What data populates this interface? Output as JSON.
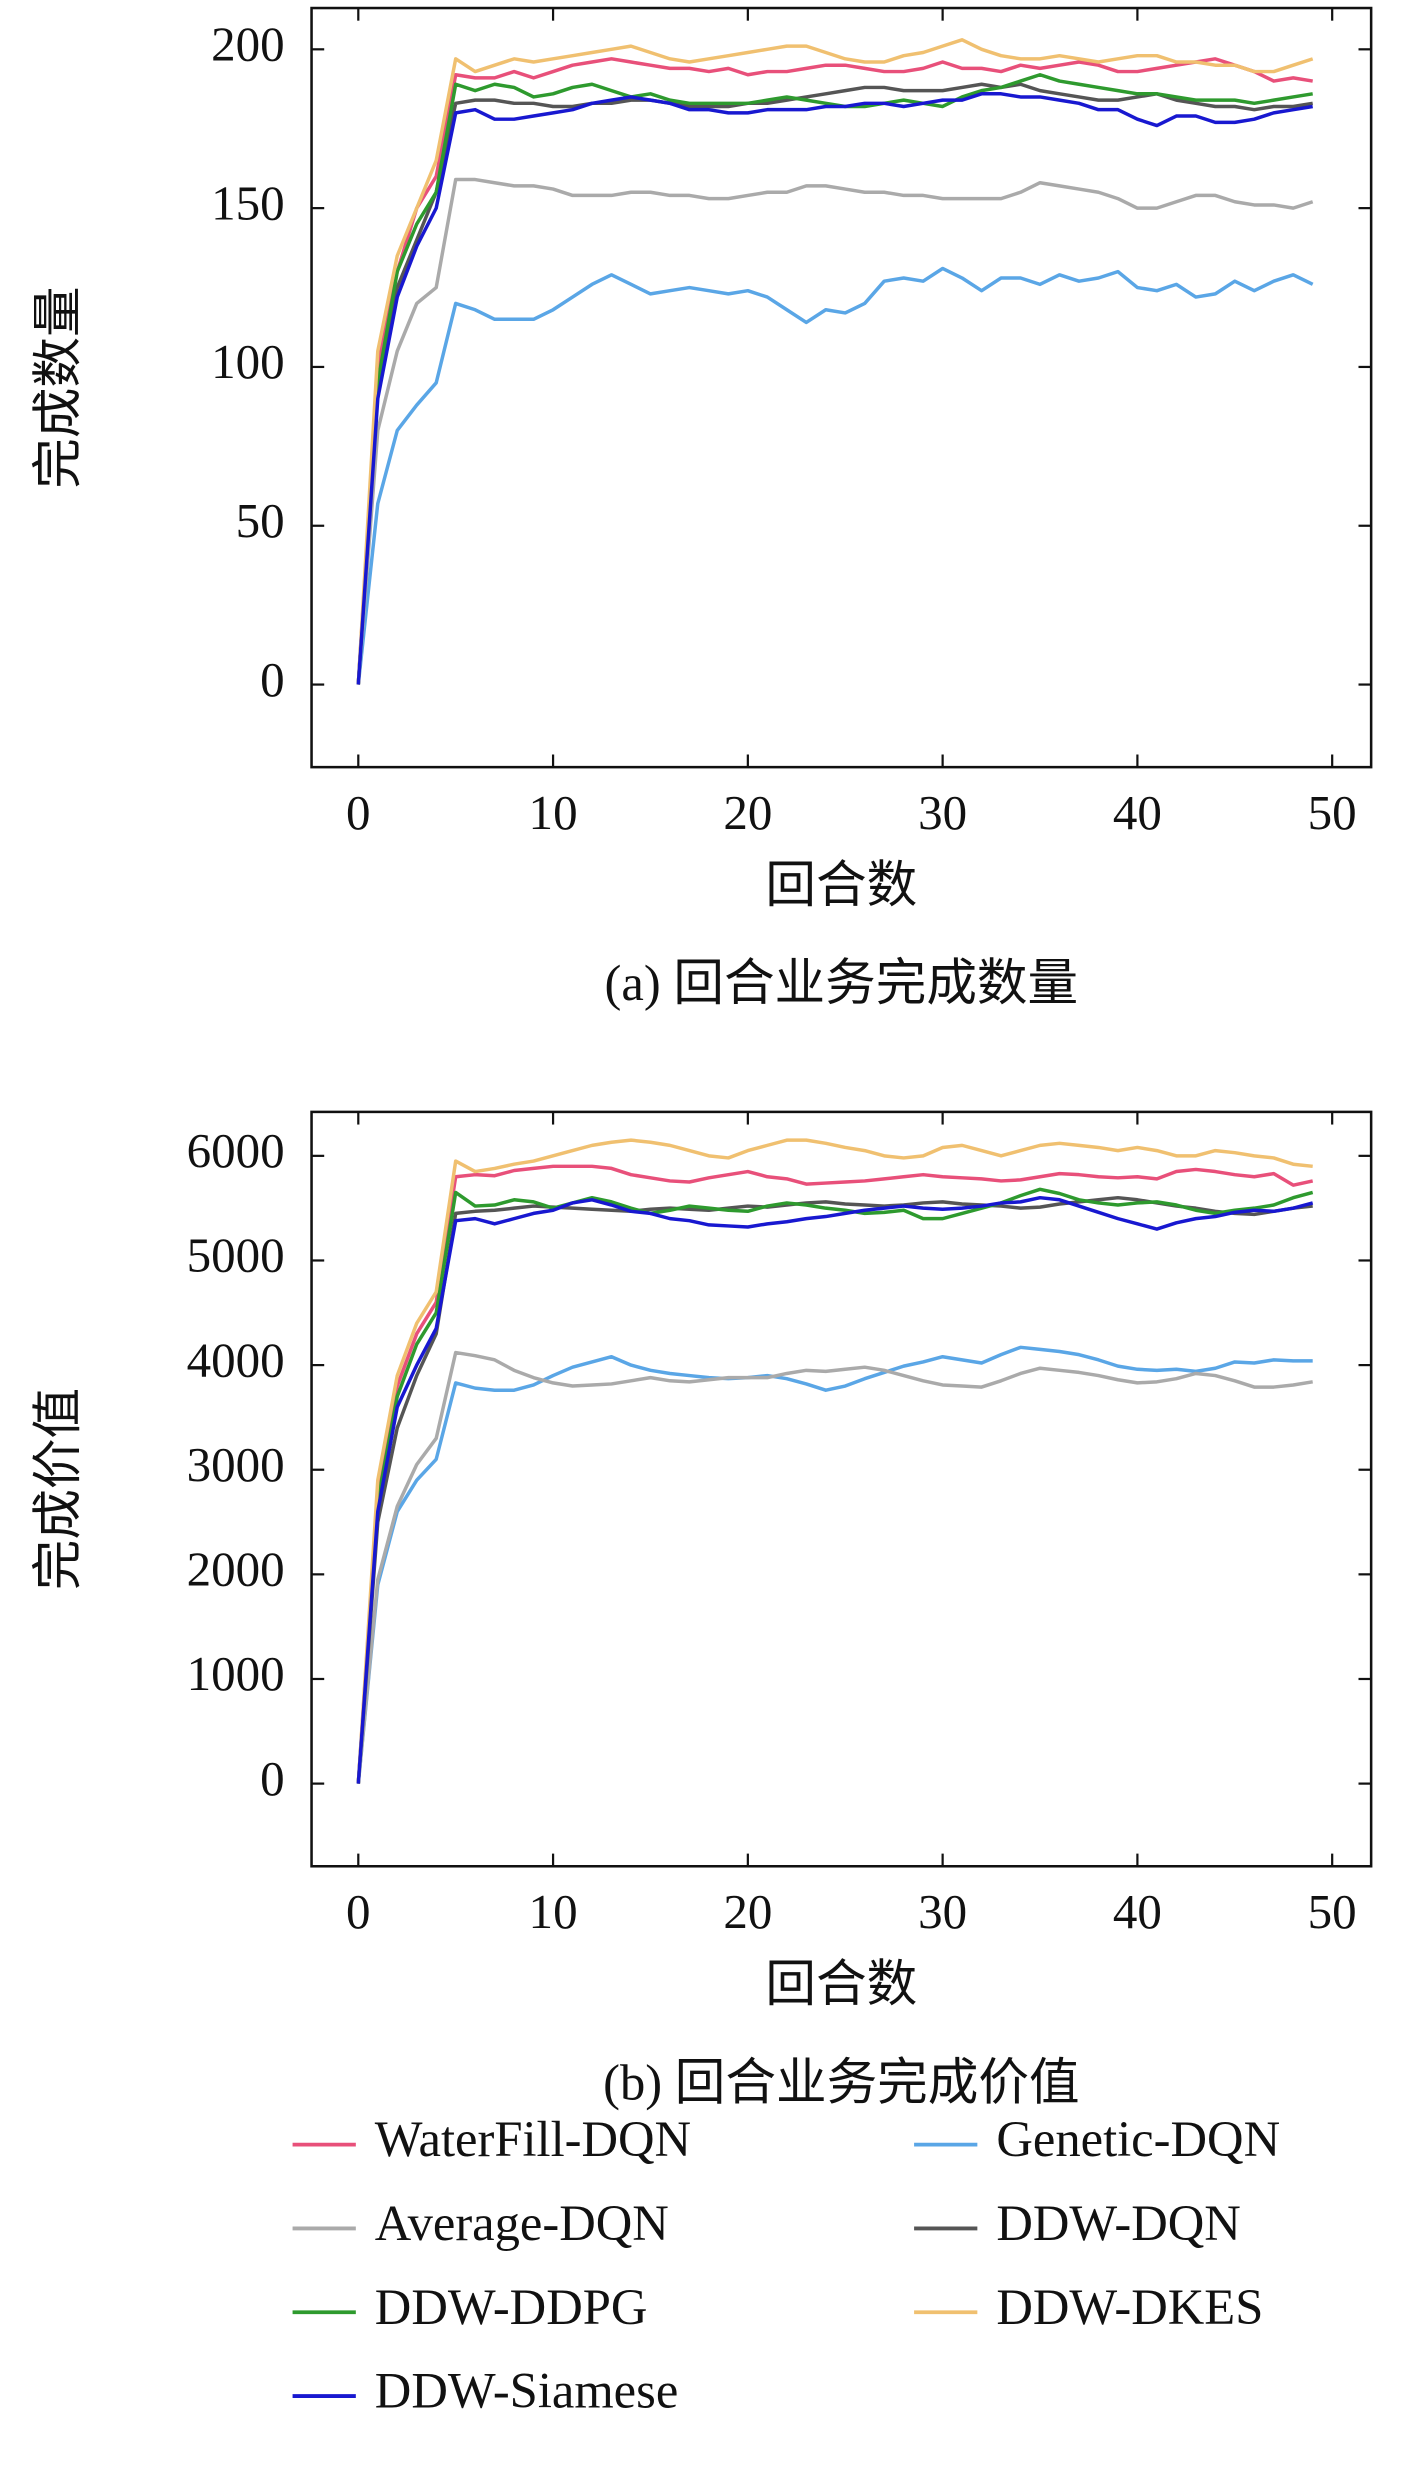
{
  "chart_data": [
    {
      "type": "line",
      "ylabel": "完成数量",
      "xlabel": "回合数",
      "caption": "(a) 回合业务完成数量",
      "x": [
        0,
        1,
        2,
        3,
        4,
        5,
        6,
        7,
        8,
        9,
        10,
        11,
        12,
        13,
        14,
        15,
        16,
        17,
        18,
        19,
        20,
        21,
        22,
        23,
        24,
        25,
        26,
        27,
        28,
        29,
        30,
        31,
        32,
        33,
        34,
        35,
        36,
        37,
        38,
        39,
        40,
        41,
        42,
        43,
        44,
        45,
        46,
        47,
        48,
        49
      ],
      "xlim": [
        -2.4,
        52
      ],
      "xticks": [
        0,
        10,
        20,
        30,
        40,
        50
      ],
      "ylim": [
        -26,
        213
      ],
      "yticks": [
        0,
        50,
        100,
        150,
        200
      ],
      "grid": false,
      "series": [
        {
          "name": "WaterFill-DQN",
          "color": "#e8507a",
          "values": [
            0,
            100,
            130,
            150,
            160,
            192,
            191,
            191,
            193,
            191,
            193,
            195,
            196,
            197,
            196,
            195,
            194,
            194,
            193,
            194,
            192,
            193,
            193,
            194,
            195,
            195,
            194,
            193,
            193,
            194,
            196,
            194,
            194,
            193,
            195,
            194,
            195,
            196,
            195,
            193,
            193,
            194,
            195,
            196,
            197,
            195,
            193,
            190,
            191,
            190
          ]
        },
        {
          "name": "Genetic-DQN",
          "color": "#5aa6e6",
          "values": [
            0,
            57,
            80,
            88,
            95,
            120,
            118,
            115,
            115,
            115,
            118,
            122,
            126,
            129,
            126,
            123,
            124,
            125,
            124,
            123,
            124,
            122,
            118,
            114,
            118,
            117,
            120,
            127,
            128,
            127,
            131,
            128,
            124,
            128,
            128,
            126,
            129,
            127,
            128,
            130,
            125,
            124,
            126,
            122,
            123,
            127,
            124,
            127,
            129,
            126
          ]
        },
        {
          "name": "Average-DQN",
          "color": "#aaaaaa",
          "values": [
            0,
            80,
            105,
            120,
            125,
            159,
            159,
            158,
            157,
            157,
            156,
            154,
            154,
            154,
            155,
            155,
            154,
            154,
            153,
            153,
            154,
            155,
            155,
            157,
            157,
            156,
            155,
            155,
            154,
            154,
            153,
            153,
            153,
            153,
            155,
            158,
            157,
            156,
            155,
            153,
            150,
            150,
            152,
            154,
            154,
            152,
            151,
            151,
            150,
            152
          ]
        },
        {
          "name": "DDW-DQN",
          "color": "#555555",
          "values": [
            0,
            95,
            125,
            140,
            155,
            183,
            184,
            184,
            183,
            183,
            182,
            182,
            183,
            183,
            184,
            184,
            183,
            182,
            182,
            182,
            183,
            183,
            184,
            185,
            186,
            187,
            188,
            188,
            187,
            187,
            187,
            188,
            189,
            188,
            189,
            187,
            186,
            185,
            184,
            184,
            185,
            186,
            184,
            183,
            182,
            182,
            181,
            182,
            182,
            183
          ]
        },
        {
          "name": "DDW-DDPG",
          "color": "#2e9a2e",
          "values": [
            0,
            95,
            130,
            145,
            155,
            189,
            187,
            189,
            188,
            185,
            186,
            188,
            189,
            187,
            185,
            186,
            184,
            183,
            183,
            183,
            183,
            184,
            185,
            184,
            183,
            182,
            182,
            183,
            184,
            183,
            182,
            185,
            187,
            188,
            190,
            192,
            190,
            189,
            188,
            187,
            186,
            186,
            185,
            184,
            184,
            184,
            183,
            184,
            185,
            186
          ]
        },
        {
          "name": "DDW-DKES",
          "color": "#f0c070",
          "values": [
            0,
            105,
            135,
            150,
            165,
            197,
            193,
            195,
            197,
            196,
            197,
            198,
            199,
            200,
            201,
            199,
            197,
            196,
            197,
            198,
            199,
            200,
            201,
            201,
            199,
            197,
            196,
            196,
            198,
            199,
            201,
            203,
            200,
            198,
            197,
            197,
            198,
            197,
            196,
            197,
            198,
            198,
            196,
            196,
            195,
            195,
            193,
            193,
            195,
            197
          ]
        },
        {
          "name": "DDW-Siamese",
          "color": "#1818d0",
          "values": [
            0,
            90,
            122,
            138,
            150,
            180,
            181,
            178,
            178,
            179,
            180,
            181,
            183,
            184,
            185,
            184,
            183,
            181,
            181,
            180,
            180,
            181,
            181,
            181,
            182,
            182,
            183,
            183,
            182,
            183,
            184,
            184,
            186,
            186,
            185,
            185,
            184,
            183,
            181,
            181,
            178,
            176,
            179,
            179,
            177,
            177,
            178,
            180,
            181,
            182
          ]
        }
      ]
    },
    {
      "type": "line",
      "ylabel": "完成价值",
      "xlabel": "回合数",
      "caption": "(b) 回合业务完成价值",
      "x": [
        0,
        1,
        2,
        3,
        4,
        5,
        6,
        7,
        8,
        9,
        10,
        11,
        12,
        13,
        14,
        15,
        16,
        17,
        18,
        19,
        20,
        21,
        22,
        23,
        24,
        25,
        26,
        27,
        28,
        29,
        30,
        31,
        32,
        33,
        34,
        35,
        36,
        37,
        38,
        39,
        40,
        41,
        42,
        43,
        44,
        45,
        46,
        47,
        48,
        49
      ],
      "xlim": [
        -2.4,
        52
      ],
      "xticks": [
        0,
        10,
        20,
        30,
        40,
        50
      ],
      "ylim": [
        -790,
        6420
      ],
      "yticks": [
        0,
        1000,
        2000,
        3000,
        4000,
        5000,
        6000
      ],
      "grid": false,
      "series": [
        {
          "name": "WaterFill-DQN",
          "color": "#e8507a",
          "values": [
            0,
            2800,
            3800,
            4300,
            4600,
            5800,
            5820,
            5810,
            5860,
            5880,
            5900,
            5900,
            5900,
            5880,
            5820,
            5790,
            5760,
            5750,
            5790,
            5820,
            5850,
            5800,
            5780,
            5730,
            5740,
            5750,
            5760,
            5780,
            5800,
            5820,
            5800,
            5790,
            5780,
            5760,
            5770,
            5800,
            5830,
            5820,
            5800,
            5790,
            5800,
            5780,
            5850,
            5870,
            5850,
            5820,
            5800,
            5830,
            5720,
            5760
          ]
        },
        {
          "name": "Genetic-DQN",
          "color": "#5aa6e6",
          "values": [
            0,
            1900,
            2600,
            2900,
            3100,
            3830,
            3780,
            3760,
            3760,
            3810,
            3900,
            3980,
            4030,
            4080,
            4000,
            3950,
            3920,
            3900,
            3880,
            3870,
            3880,
            3900,
            3870,
            3820,
            3760,
            3800,
            3870,
            3930,
            3990,
            4030,
            4080,
            4050,
            4020,
            4100,
            4170,
            4150,
            4130,
            4100,
            4050,
            3990,
            3960,
            3950,
            3960,
            3940,
            3970,
            4030,
            4020,
            4050,
            4040,
            4040
          ]
        },
        {
          "name": "Average-DQN",
          "color": "#aaaaaa",
          "values": [
            0,
            1950,
            2650,
            3050,
            3300,
            4120,
            4090,
            4050,
            3950,
            3880,
            3830,
            3800,
            3810,
            3820,
            3850,
            3880,
            3850,
            3840,
            3860,
            3880,
            3880,
            3880,
            3920,
            3950,
            3940,
            3960,
            3980,
            3950,
            3900,
            3850,
            3810,
            3800,
            3790,
            3850,
            3920,
            3970,
            3950,
            3930,
            3900,
            3860,
            3830,
            3840,
            3870,
            3920,
            3900,
            3850,
            3790,
            3790,
            3810,
            3840
          ]
        },
        {
          "name": "DDW-DQN",
          "color": "#555555",
          "values": [
            0,
            2500,
            3400,
            3900,
            4300,
            5450,
            5470,
            5480,
            5500,
            5520,
            5510,
            5500,
            5490,
            5480,
            5470,
            5490,
            5500,
            5490,
            5480,
            5500,
            5520,
            5510,
            5530,
            5550,
            5560,
            5540,
            5530,
            5520,
            5530,
            5550,
            5560,
            5540,
            5530,
            5520,
            5500,
            5510,
            5540,
            5560,
            5580,
            5600,
            5580,
            5550,
            5520,
            5500,
            5470,
            5450,
            5440,
            5470,
            5500,
            5520
          ]
        },
        {
          "name": "DDW-DDPG",
          "color": "#2e9a2e",
          "values": [
            0,
            2700,
            3700,
            4200,
            4500,
            5650,
            5520,
            5530,
            5580,
            5560,
            5500,
            5550,
            5600,
            5560,
            5500,
            5450,
            5480,
            5520,
            5500,
            5480,
            5470,
            5520,
            5550,
            5530,
            5500,
            5480,
            5450,
            5460,
            5480,
            5400,
            5400,
            5450,
            5500,
            5550,
            5620,
            5680,
            5640,
            5580,
            5550,
            5530,
            5550,
            5560,
            5530,
            5480,
            5450,
            5480,
            5500,
            5530,
            5600,
            5650
          ]
        },
        {
          "name": "DDW-DKES",
          "color": "#f0c070",
          "values": [
            0,
            2900,
            3900,
            4400,
            4700,
            5950,
            5850,
            5880,
            5920,
            5950,
            6000,
            6050,
            6100,
            6130,
            6150,
            6130,
            6100,
            6050,
            6000,
            5980,
            6050,
            6100,
            6150,
            6150,
            6120,
            6080,
            6050,
            6000,
            5980,
            6000,
            6080,
            6100,
            6050,
            6000,
            6050,
            6100,
            6120,
            6100,
            6080,
            6050,
            6080,
            6050,
            6000,
            6000,
            6050,
            6030,
            6000,
            5980,
            5920,
            5900
          ]
        },
        {
          "name": "DDW-Siamese",
          "color": "#1818d0",
          "values": [
            0,
            2600,
            3600,
            4000,
            4350,
            5380,
            5400,
            5350,
            5400,
            5450,
            5480,
            5550,
            5580,
            5530,
            5470,
            5450,
            5400,
            5380,
            5340,
            5330,
            5320,
            5350,
            5370,
            5400,
            5420,
            5450,
            5480,
            5500,
            5520,
            5500,
            5490,
            5500,
            5520,
            5550,
            5560,
            5600,
            5580,
            5520,
            5460,
            5400,
            5350,
            5300,
            5360,
            5400,
            5420,
            5460,
            5480,
            5470,
            5500,
            5550
          ]
        }
      ]
    }
  ]
}
